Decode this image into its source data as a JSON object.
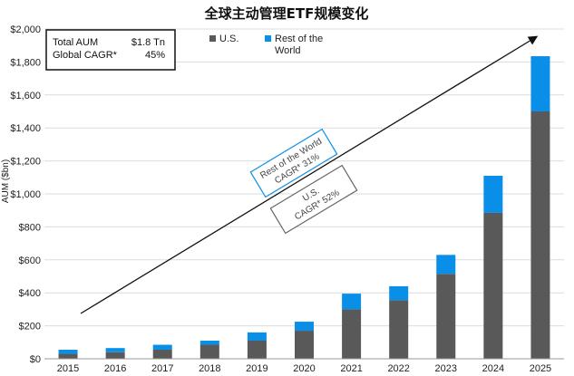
{
  "chart_data": {
    "type": "bar",
    "stacked": true,
    "title": "全球主动管理ETF规模变化",
    "ylabel": "AUM ($bn)",
    "ylim": [
      0,
      2000
    ],
    "yticks": [
      0,
      200,
      400,
      600,
      800,
      1000,
      1200,
      1400,
      1600,
      1800,
      2000
    ],
    "ytick_labels": [
      "$0",
      "$200",
      "$400",
      "$600",
      "$800",
      "$1,000",
      "$1,200",
      "$1,400",
      "$1,600",
      "$1,800",
      "$2,000"
    ],
    "grid": true,
    "categories": [
      "2015",
      "2016",
      "2017",
      "2018",
      "2019",
      "2020",
      "2021",
      "2022",
      "2023",
      "2024",
      "2025"
    ],
    "series": [
      {
        "name": "U.S.",
        "color": "#595959",
        "values": [
          30,
          40,
          55,
          85,
          110,
          170,
          300,
          355,
          515,
          885,
          1500
        ]
      },
      {
        "name": "Rest of the World",
        "color": "#0a8fe8",
        "values": [
          25,
          25,
          30,
          25,
          50,
          55,
          95,
          85,
          115,
          225,
          335
        ]
      }
    ],
    "legend_position": "top",
    "summary_box": {
      "row1_label": "Total AUM",
      "row1_value": "$1.8 Tn",
      "row2_label": "Global CAGR*",
      "row2_value": "45%"
    },
    "annotations": [
      {
        "line1": "Rest of the World",
        "line2": "CAGR* 31%",
        "color": "#0a8fe8"
      },
      {
        "line1": "U.S.",
        "line2": "CAGR* 52%",
        "color": "#666666"
      }
    ]
  }
}
